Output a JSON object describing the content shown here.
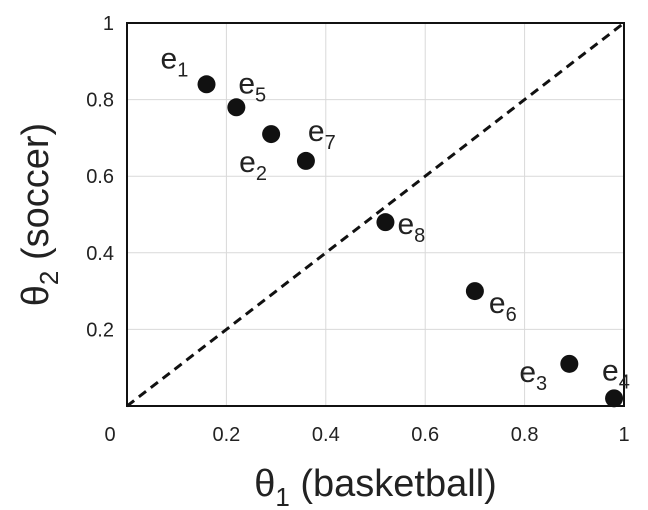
{
  "chart_data": {
    "type": "scatter",
    "title": "",
    "xlabel": "θ",
    "xlabel_sub": "1",
    "xlabel_rest": " (basketball)",
    "ylabel": "θ",
    "ylabel_sub": "2",
    "ylabel_rest": " (soccer)",
    "xlim": [
      0,
      1
    ],
    "ylim": [
      0,
      1
    ],
    "grid": true,
    "x_ticks": [
      "0",
      "0.2",
      "0.4",
      "0.6",
      "0.8",
      "1"
    ],
    "y_ticks": [
      "0.2",
      "0.4",
      "0.6",
      "0.8",
      "1"
    ],
    "reference_line": {
      "style": "dashed",
      "from": [
        0,
        0
      ],
      "to": [
        1,
        1
      ]
    },
    "points": [
      {
        "label": "e",
        "sub": "1",
        "x": 0.16,
        "y": 0.84
      },
      {
        "label": "e",
        "sub": "5",
        "x": 0.22,
        "y": 0.78
      },
      {
        "label": "e",
        "sub": "2",
        "x": 0.29,
        "y": 0.71
      },
      {
        "label": "e",
        "sub": "7",
        "x": 0.36,
        "y": 0.64
      },
      {
        "label": "e",
        "sub": "8",
        "x": 0.52,
        "y": 0.48
      },
      {
        "label": "e",
        "sub": "6",
        "x": 0.7,
        "y": 0.3
      },
      {
        "label": "e",
        "sub": "3",
        "x": 0.89,
        "y": 0.11
      },
      {
        "label": "e",
        "sub": "4",
        "x": 0.98,
        "y": 0.02
      }
    ]
  }
}
